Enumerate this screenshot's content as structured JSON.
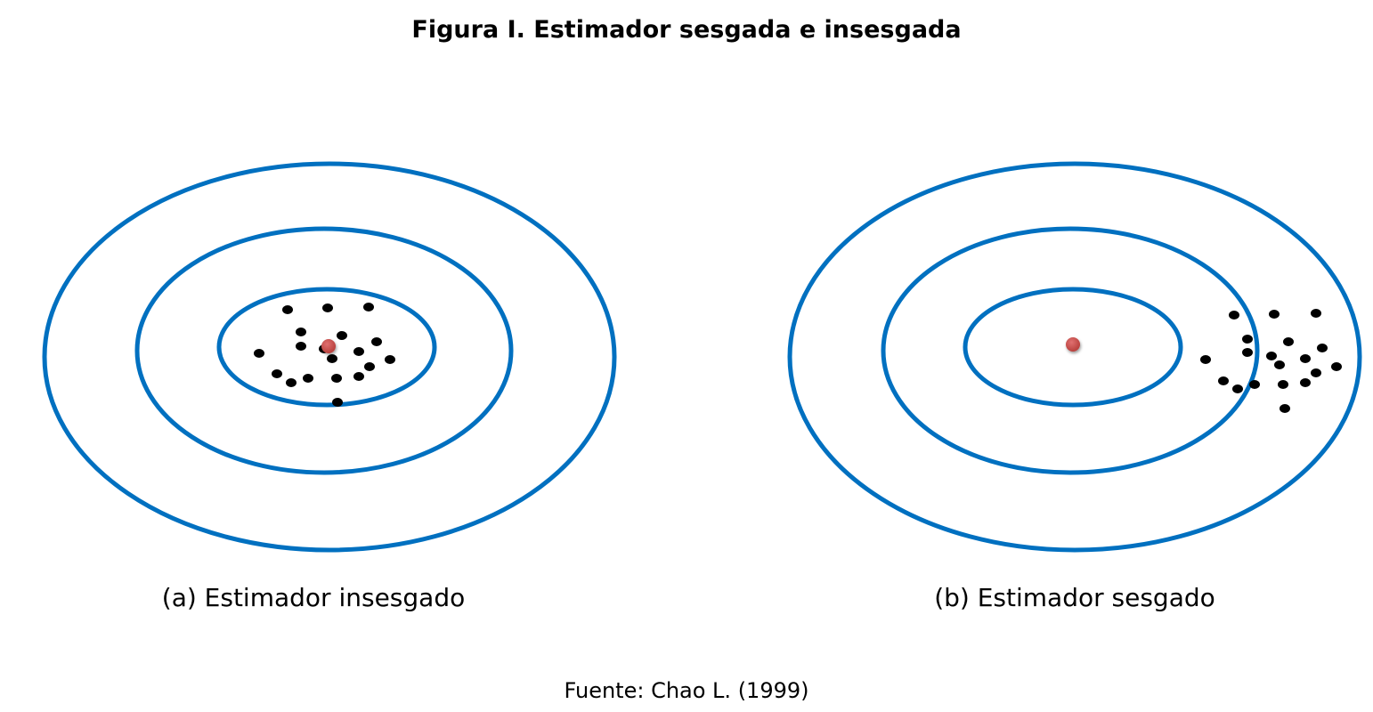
{
  "title": "Figura I. Estimador sesgada e insesgada",
  "panels": [
    {
      "caption": "(a) Estimador insesgado"
    },
    {
      "caption": "(b) Estimador sesgado"
    }
  ],
  "source": "Fuente: Chao L. (1999)",
  "colors": {
    "ring": "#0070C0",
    "target": "#C0504D",
    "estimate": "#000000"
  }
}
